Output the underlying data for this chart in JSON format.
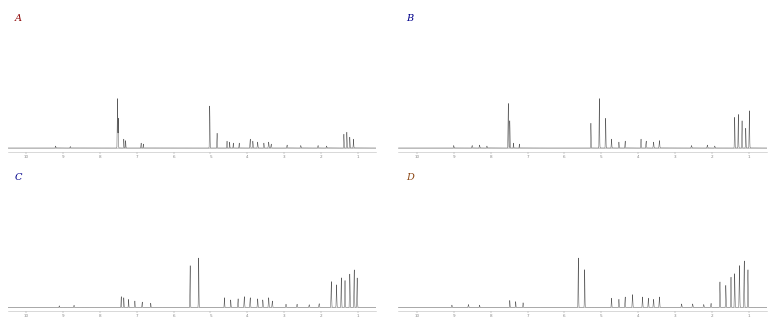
{
  "panels": [
    "A",
    "B",
    "C",
    "D"
  ],
  "panel_label_colors": [
    "#8B0000",
    "#00008B",
    "#00008B",
    "#8B4513"
  ],
  "bg_color": "#ffffff",
  "line_color": "#444444",
  "figsize": [
    7.71,
    3.21
  ],
  "dpi": 100,
  "xmin": 10.5,
  "xmax": 0.5
}
